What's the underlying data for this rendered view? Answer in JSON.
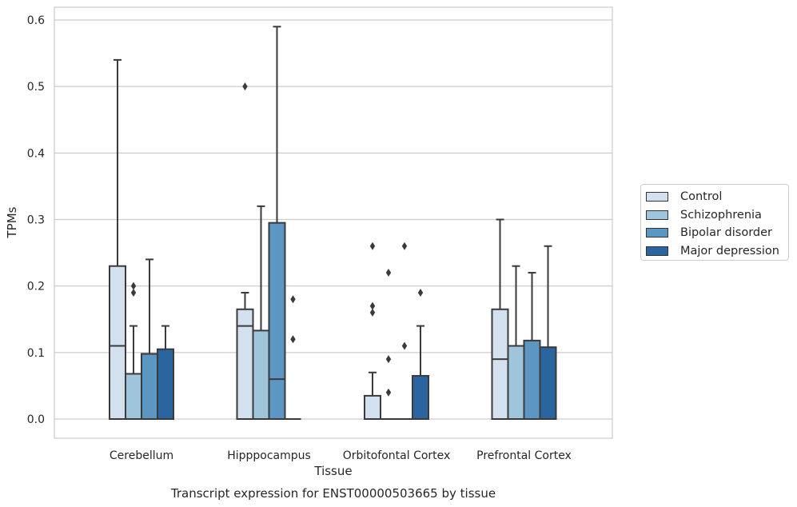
{
  "chart_data": {
    "type": "boxplot",
    "title": "Transcript expression for ENST00000503665 by tissue",
    "xlabel": "Tissue",
    "ylabel": "TPMs",
    "ylim": [
      -0.028,
      0.62
    ],
    "yticks": [
      0.0,
      0.1,
      0.2,
      0.3,
      0.4,
      0.5,
      0.6
    ],
    "ytick_labels": [
      "0.0",
      "0.1",
      "0.2",
      "0.3",
      "0.4",
      "0.5",
      "0.6"
    ],
    "grid": "horizontal",
    "legend_position": "right",
    "categories": [
      "Cerebellum",
      "Hipppocampus",
      "Orbitofontal Cortex",
      "Prefrontal Cortex"
    ],
    "series": [
      {
        "name": "Control",
        "color": "#d3e1ef",
        "boxes": [
          {
            "q1": 0.0,
            "median": 0.11,
            "q3": 0.23,
            "whisker_low": 0.0,
            "whisker_high": 0.54,
            "outliers": []
          },
          {
            "q1": 0.0,
            "median": 0.14,
            "q3": 0.165,
            "whisker_low": 0.0,
            "whisker_high": 0.19,
            "outliers": [
              0.5
            ]
          },
          {
            "q1": 0.0,
            "median": 0.0,
            "q3": 0.035,
            "whisker_low": 0.0,
            "whisker_high": 0.07,
            "outliers": [
              0.16,
              0.17,
              0.26
            ]
          },
          {
            "q1": 0.0,
            "median": 0.09,
            "q3": 0.165,
            "whisker_low": 0.0,
            "whisker_high": 0.3,
            "outliers": []
          }
        ]
      },
      {
        "name": "Schizophrenia",
        "color": "#9ec5db",
        "boxes": [
          {
            "q1": 0.0,
            "median": 0.0,
            "q3": 0.068,
            "whisker_low": 0.0,
            "whisker_high": 0.14,
            "outliers": [
              0.19,
              0.2
            ]
          },
          {
            "q1": 0.0,
            "median": 0.0,
            "q3": 0.133,
            "whisker_low": 0.0,
            "whisker_high": 0.32,
            "outliers": []
          },
          {
            "q1": 0.0,
            "median": 0.0,
            "q3": 0.0,
            "whisker_low": 0.0,
            "whisker_high": 0.0,
            "outliers": [
              0.04,
              0.09,
              0.22
            ]
          },
          {
            "q1": 0.0,
            "median": 0.0,
            "q3": 0.11,
            "whisker_low": 0.0,
            "whisker_high": 0.23,
            "outliers": []
          }
        ]
      },
      {
        "name": "Bipolar disorder",
        "color": "#5b97c2",
        "boxes": [
          {
            "q1": 0.0,
            "median": 0.0,
            "q3": 0.098,
            "whisker_low": 0.0,
            "whisker_high": 0.24,
            "outliers": []
          },
          {
            "q1": 0.0,
            "median": 0.06,
            "q3": 0.295,
            "whisker_low": 0.0,
            "whisker_high": 0.59,
            "outliers": []
          },
          {
            "q1": 0.0,
            "median": 0.0,
            "q3": 0.0,
            "whisker_low": 0.0,
            "whisker_high": 0.0,
            "outliers": [
              0.11,
              0.26
            ]
          },
          {
            "q1": 0.0,
            "median": 0.0,
            "q3": 0.118,
            "whisker_low": 0.0,
            "whisker_high": 0.22,
            "outliers": []
          }
        ]
      },
      {
        "name": "Major depression",
        "color": "#2b65a0",
        "boxes": [
          {
            "q1": 0.0,
            "median": 0.0,
            "q3": 0.105,
            "whisker_low": 0.0,
            "whisker_high": 0.14,
            "outliers": []
          },
          {
            "q1": 0.0,
            "median": 0.0,
            "q3": 0.0,
            "whisker_low": 0.0,
            "whisker_high": 0.0,
            "outliers": [
              0.12,
              0.18
            ]
          },
          {
            "q1": 0.0,
            "median": 0.0,
            "q3": 0.065,
            "whisker_low": 0.0,
            "whisker_high": 0.14,
            "outliers": [
              0.19
            ]
          },
          {
            "q1": 0.0,
            "median": 0.0,
            "q3": 0.108,
            "whisker_low": 0.0,
            "whisker_high": 0.26,
            "outliers": []
          }
        ]
      }
    ]
  }
}
